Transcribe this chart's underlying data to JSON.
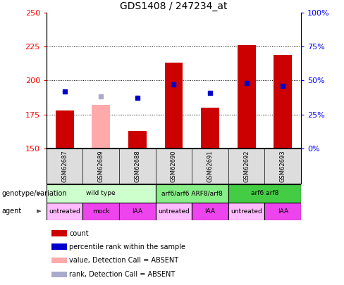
{
  "title": "GDS1408 / 247234_at",
  "samples": [
    "GSM62687",
    "GSM62689",
    "GSM62688",
    "GSM62690",
    "GSM62691",
    "GSM62692",
    "GSM62693"
  ],
  "bar_values": [
    178,
    182,
    163,
    213,
    180,
    226,
    219
  ],
  "bar_colors": [
    "#cc0000",
    "#ffaaaa",
    "#cc0000",
    "#cc0000",
    "#cc0000",
    "#cc0000",
    "#cc0000"
  ],
  "rank_values": [
    192,
    188,
    187,
    197,
    191,
    198,
    196
  ],
  "rank_colors": [
    "#0000cc",
    "#aaaacc",
    "#0000cc",
    "#0000cc",
    "#0000cc",
    "#0000cc",
    "#0000cc"
  ],
  "y_min": 150,
  "y_max": 250,
  "y_ticks": [
    150,
    175,
    200,
    225,
    250
  ],
  "right_y_ticks": [
    0,
    25,
    50,
    75,
    100
  ],
  "right_y_labels": [
    "0%",
    "25%",
    "50%",
    "75%",
    "100%"
  ],
  "genotype_groups": [
    {
      "label": "wild type",
      "span": [
        0,
        3
      ],
      "color": "#ccffcc"
    },
    {
      "label": "arf6/arf6 ARF8/arf8",
      "span": [
        3,
        5
      ],
      "color": "#88ee88"
    },
    {
      "label": "arf6 arf8",
      "span": [
        5,
        7
      ],
      "color": "#44cc44"
    }
  ],
  "agent_groups": [
    {
      "label": "untreated",
      "span": [
        0,
        1
      ],
      "color": "#ffbbff"
    },
    {
      "label": "mock",
      "span": [
        1,
        2
      ],
      "color": "#ee44ee"
    },
    {
      "label": "IAA",
      "span": [
        2,
        3
      ],
      "color": "#ee44ee"
    },
    {
      "label": "untreated",
      "span": [
        3,
        4
      ],
      "color": "#ffbbff"
    },
    {
      "label": "IAA",
      "span": [
        4,
        5
      ],
      "color": "#ee44ee"
    },
    {
      "label": "untreated",
      "span": [
        5,
        6
      ],
      "color": "#ffbbff"
    },
    {
      "label": "IAA",
      "span": [
        6,
        7
      ],
      "color": "#ee44ee"
    }
  ],
  "legend_items": [
    {
      "label": "count",
      "color": "#cc0000"
    },
    {
      "label": "percentile rank within the sample",
      "color": "#0000cc"
    },
    {
      "label": "value, Detection Call = ABSENT",
      "color": "#ffaaaa"
    },
    {
      "label": "rank, Detection Call = ABSENT",
      "color": "#aaaacc"
    }
  ],
  "sample_bg": "#dddddd",
  "bar_width": 0.5
}
